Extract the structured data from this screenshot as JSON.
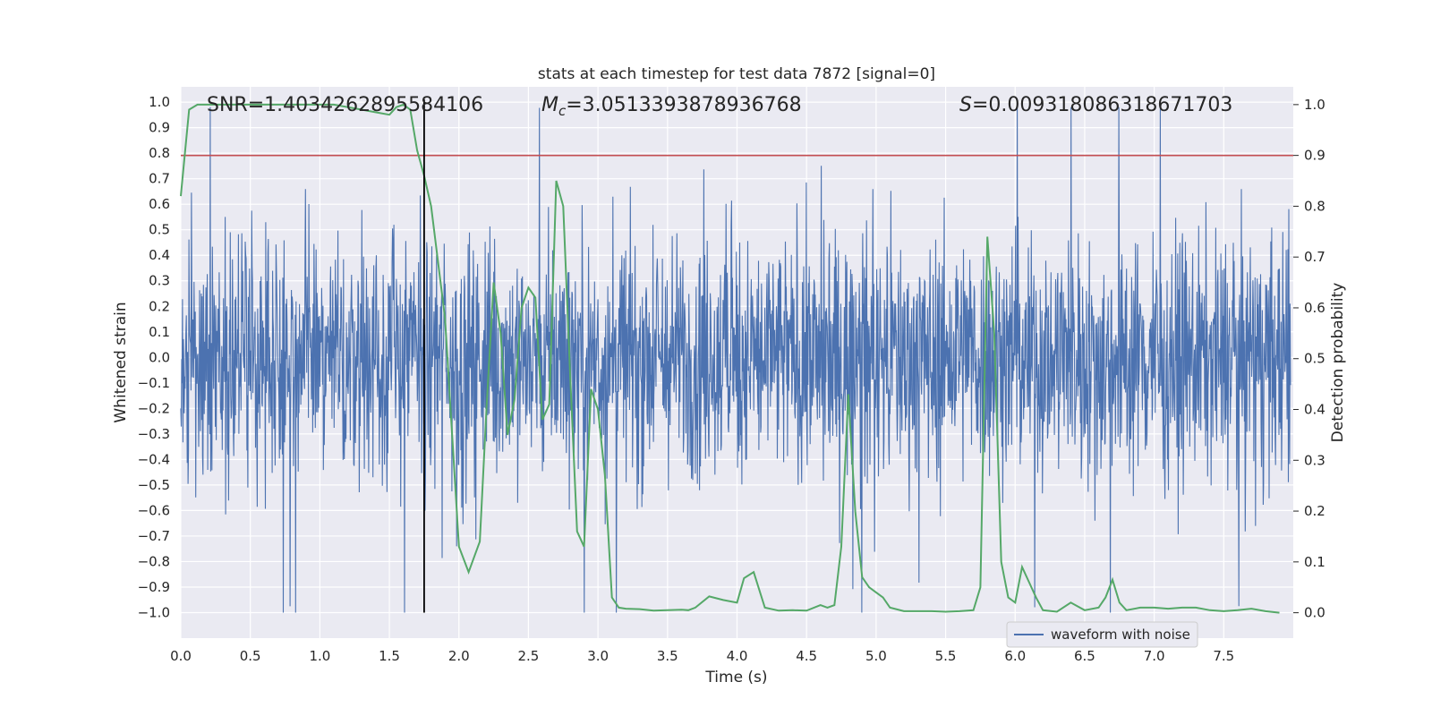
{
  "chart_data": {
    "type": "line",
    "title": "stats at each timestep for test data 7872 [signal=0]",
    "xlabel": "Time (s)",
    "ylabel": "Whitened strain",
    "y2label": "Detection probability",
    "xlim": [
      0.0,
      8.0
    ],
    "ylim": [
      -1.1,
      1.06
    ],
    "y2lim": [
      -0.05,
      1.035
    ],
    "grid": true,
    "legend_position": "bottom-right",
    "xticks": [
      0.0,
      0.5,
      1.0,
      1.5,
      2.0,
      2.5,
      3.0,
      3.5,
      4.0,
      4.5,
      5.0,
      5.5,
      6.0,
      6.5,
      7.0,
      7.5
    ],
    "xtick_labels": [
      "0.0",
      "0.5",
      "1.0",
      "1.5",
      "2.0",
      "2.5",
      "3.0",
      "3.5",
      "4.0",
      "4.5",
      "5.0",
      "5.5",
      "6.0",
      "6.5",
      "7.0",
      "7.5"
    ],
    "yticks": [
      1.0,
      0.9,
      0.8,
      0.7,
      0.6,
      0.5,
      0.4,
      0.3,
      0.2,
      0.1,
      0.0,
      -0.1,
      -0.2,
      -0.3,
      -0.4,
      -0.5,
      -0.6,
      -0.7,
      -0.8,
      -0.9,
      -1.0
    ],
    "ytick_labels": [
      "1.0",
      "0.9",
      "0.8",
      "0.7",
      "0.6",
      "0.5",
      "0.4",
      "0.3",
      "0.2",
      "0.1",
      "0.0",
      "−0.1",
      "−0.2",
      "−0.3",
      "−0.4",
      "−0.5",
      "−0.6",
      "−0.7",
      "−0.8",
      "−0.9",
      "−1.0"
    ],
    "y2ticks": [
      1.0,
      0.9,
      0.8,
      0.7,
      0.6,
      0.5,
      0.4,
      0.3,
      0.2,
      0.1,
      0.0
    ],
    "y2tick_labels": [
      "1.0",
      "0.9",
      "0.8",
      "0.7",
      "0.6",
      "0.5",
      "0.4",
      "0.3",
      "0.2",
      "0.1",
      "0.0"
    ],
    "annotations": {
      "snr": "SNR=1.4034262895584106",
      "mc_symbol": "M",
      "mc_sub": "c",
      "mc_value": "=3.0513393878936768",
      "s_symbol": "S",
      "s_value": "=0.009318086318671703"
    },
    "threshold": 0.9,
    "vertical_marker_x": 1.75,
    "waveform": {
      "name": "waveform with noise",
      "color": "#4c72b0",
      "note": "dense noisy whitened strain trace, mostly within ±0.6 with peaks to about ±1.0"
    },
    "probability": {
      "color": "#55a868",
      "x": [
        0.0,
        0.06,
        0.12,
        0.2,
        0.3,
        0.4,
        0.5,
        0.6,
        0.7,
        0.8,
        0.9,
        1.0,
        1.1,
        1.2,
        1.3,
        1.4,
        1.5,
        1.55,
        1.6,
        1.65,
        1.7,
        1.75,
        1.8,
        1.9,
        2.0,
        2.07,
        2.15,
        2.2,
        2.25,
        2.3,
        2.35,
        2.4,
        2.45,
        2.5,
        2.55,
        2.6,
        2.65,
        2.7,
        2.75,
        2.8,
        2.85,
        2.9,
        2.95,
        3.0,
        3.05,
        3.1,
        3.15,
        3.2,
        3.3,
        3.4,
        3.5,
        3.6,
        3.65,
        3.7,
        3.8,
        3.9,
        4.0,
        4.05,
        4.12,
        4.2,
        4.3,
        4.4,
        4.5,
        4.6,
        4.65,
        4.7,
        4.75,
        4.8,
        4.85,
        4.9,
        4.95,
        5.0,
        5.05,
        5.1,
        5.2,
        5.3,
        5.4,
        5.5,
        5.6,
        5.7,
        5.75,
        5.8,
        5.85,
        5.9,
        5.95,
        6.0,
        6.05,
        6.1,
        6.15,
        6.2,
        6.3,
        6.4,
        6.5,
        6.6,
        6.65,
        6.7,
        6.75,
        6.8,
        6.9,
        7.0,
        7.1,
        7.2,
        7.3,
        7.4,
        7.5,
        7.6,
        7.7,
        7.8,
        7.9
      ],
      "y": [
        0.82,
        0.99,
        1.0,
        1.0,
        1.0,
        1.0,
        1.0,
        1.0,
        1.0,
        1.0,
        1.0,
        1.0,
        1.0,
        0.995,
        0.99,
        0.985,
        0.98,
        0.995,
        1.0,
        0.99,
        0.91,
        0.86,
        0.8,
        0.58,
        0.13,
        0.08,
        0.14,
        0.41,
        0.65,
        0.55,
        0.35,
        0.42,
        0.6,
        0.64,
        0.62,
        0.38,
        0.41,
        0.85,
        0.8,
        0.47,
        0.16,
        0.13,
        0.44,
        0.4,
        0.27,
        0.03,
        0.01,
        0.008,
        0.007,
        0.004,
        0.005,
        0.006,
        0.005,
        0.01,
        0.032,
        0.025,
        0.02,
        0.068,
        0.08,
        0.01,
        0.004,
        0.005,
        0.004,
        0.015,
        0.01,
        0.015,
        0.13,
        0.43,
        0.2,
        0.07,
        0.05,
        0.04,
        0.03,
        0.01,
        0.003,
        0.003,
        0.003,
        0.002,
        0.003,
        0.005,
        0.05,
        0.74,
        0.55,
        0.1,
        0.03,
        0.02,
        0.09,
        0.06,
        0.03,
        0.005,
        0.002,
        0.02,
        0.005,
        0.01,
        0.03,
        0.065,
        0.02,
        0.005,
        0.01,
        0.01,
        0.008,
        0.01,
        0.01,
        0.005,
        0.003,
        0.005,
        0.008,
        0.003,
        0.0
      ]
    }
  }
}
